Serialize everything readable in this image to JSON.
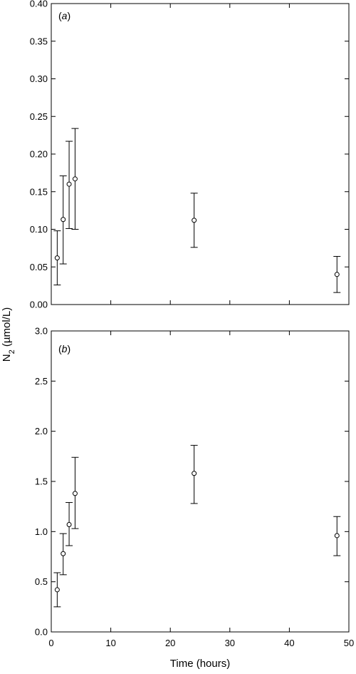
{
  "figure": {
    "shared_ylabel": "N",
    "shared_ylabel_subscript": "2",
    "shared_ylabel_units": " (µmol/L)",
    "xlabel": "Time (hours)"
  },
  "chart_data": [
    {
      "type": "scatter",
      "panel_label_prefix": "(",
      "panel_label_letter": "a",
      "panel_label_suffix": ")",
      "xlabel": "Time (hours)",
      "ylabel": "N2 (µmol/L)",
      "xlim": [
        0,
        50
      ],
      "ylim": [
        0,
        0.4
      ],
      "xticks": [
        0,
        10,
        20,
        30,
        40,
        50
      ],
      "yticks": [
        "0.00",
        "0.05",
        "0.10",
        "0.15",
        "0.20",
        "0.25",
        "0.30",
        "0.35",
        "0.40"
      ],
      "show_xtick_labels": false,
      "series": [
        {
          "points": [
            {
              "x": 1,
              "y": 0.062,
              "err_low": 0.026,
              "err_high": 0.098
            },
            {
              "x": 2,
              "y": 0.113,
              "err_low": 0.054,
              "err_high": 0.171
            },
            {
              "x": 3,
              "y": 0.16,
              "err_low": 0.101,
              "err_high": 0.217
            },
            {
              "x": 4,
              "y": 0.167,
              "err_low": 0.1,
              "err_high": 0.234
            },
            {
              "x": 24,
              "y": 0.112,
              "err_low": 0.076,
              "err_high": 0.148
            },
            {
              "x": 48,
              "y": 0.04,
              "err_low": 0.016,
              "err_high": 0.064
            }
          ]
        }
      ]
    },
    {
      "type": "scatter",
      "panel_label_prefix": "(",
      "panel_label_letter": "b",
      "panel_label_suffix": ")",
      "xlabel": "Time (hours)",
      "ylabel": "N2 (µmol/L)",
      "xlim": [
        0,
        50
      ],
      "ylim": [
        0,
        3.0
      ],
      "xticks": [
        0,
        10,
        20,
        30,
        40,
        50
      ],
      "yticks": [
        "0.0",
        "0.5",
        "1.0",
        "1.5",
        "2.0",
        "2.5",
        "3.0"
      ],
      "show_xtick_labels": true,
      "series": [
        {
          "points": [
            {
              "x": 1,
              "y": 0.42,
              "err_low": 0.25,
              "err_high": 0.59
            },
            {
              "x": 2,
              "y": 0.78,
              "err_low": 0.57,
              "err_high": 0.98
            },
            {
              "x": 3,
              "y": 1.07,
              "err_low": 0.86,
              "err_high": 1.29
            },
            {
              "x": 4,
              "y": 1.38,
              "err_low": 1.03,
              "err_high": 1.74
            },
            {
              "x": 24,
              "y": 1.58,
              "err_low": 1.28,
              "err_high": 1.86
            },
            {
              "x": 48,
              "y": 0.96,
              "err_low": 0.76,
              "err_high": 1.15
            }
          ]
        }
      ]
    }
  ]
}
